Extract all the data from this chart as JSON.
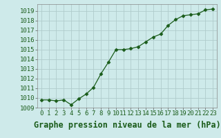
{
  "x": [
    0,
    1,
    2,
    3,
    4,
    5,
    6,
    7,
    8,
    9,
    10,
    11,
    12,
    13,
    14,
    15,
    16,
    17,
    18,
    19,
    20,
    21,
    22,
    23
  ],
  "y": [
    1009.8,
    1009.8,
    1009.7,
    1009.8,
    1009.3,
    1009.9,
    1010.4,
    1011.1,
    1012.5,
    1013.7,
    1015.0,
    1015.0,
    1015.1,
    1015.3,
    1015.8,
    1016.3,
    1016.6,
    1017.5,
    1018.1,
    1018.5,
    1018.6,
    1018.7,
    1019.1,
    1019.2
  ],
  "ylim": [
    1009,
    1019.7
  ],
  "yticks": [
    1009,
    1010,
    1011,
    1012,
    1013,
    1014,
    1015,
    1016,
    1017,
    1018,
    1019
  ],
  "xticks": [
    0,
    1,
    2,
    3,
    4,
    5,
    6,
    7,
    8,
    9,
    10,
    11,
    12,
    13,
    14,
    15,
    16,
    17,
    18,
    19,
    20,
    21,
    22,
    23
  ],
  "xlabel": "Graphe pression niveau de la mer (hPa)",
  "line_color": "#1a5c1a",
  "marker": "D",
  "marker_size": 2.5,
  "bg_color": "#ceeaea",
  "grid_color": "#b0cccc",
  "tick_fontsize": 6.5,
  "xlabel_fontsize": 8.5
}
